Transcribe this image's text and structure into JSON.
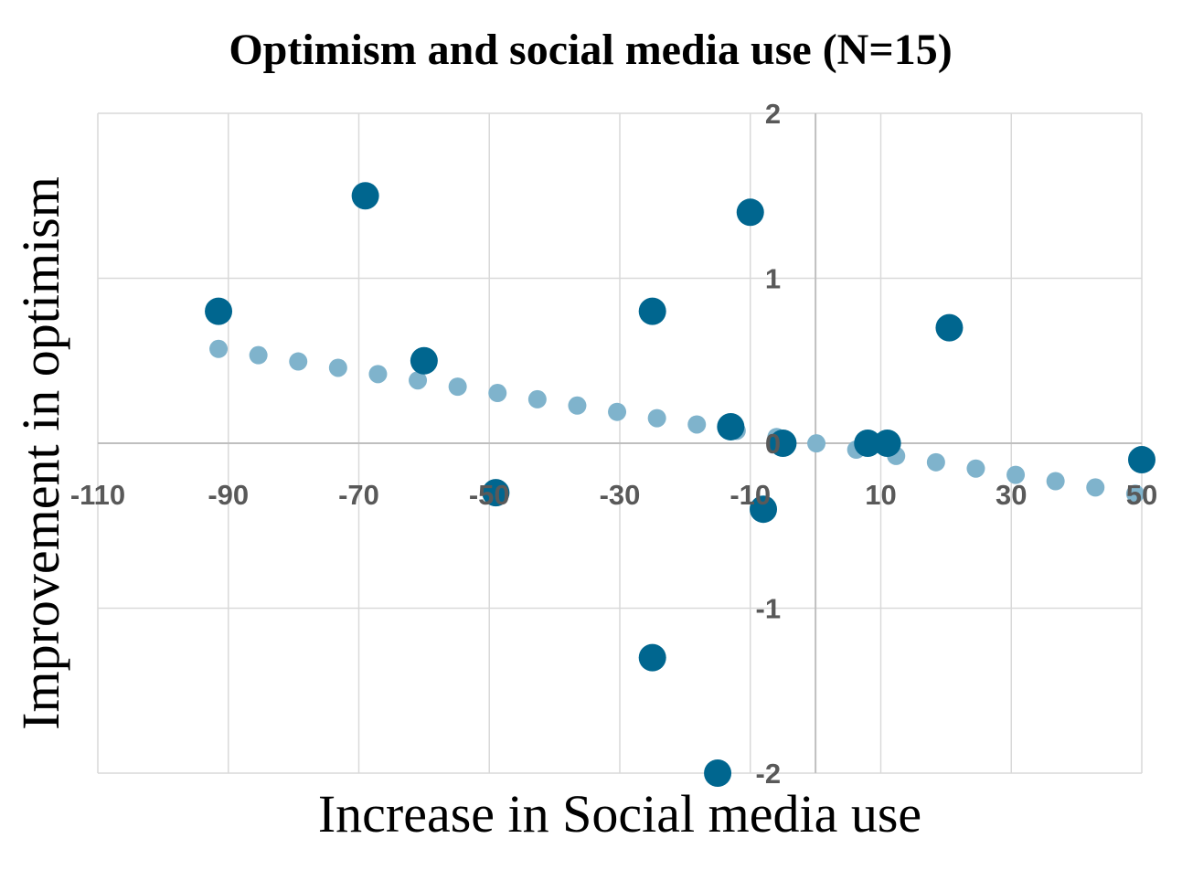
{
  "chart_data": {
    "type": "scatter",
    "title": "Optimism and social media use (N=15)",
    "xlabel": "Increase in Social media use",
    "ylabel": "Improvement in optimism",
    "xlim": [
      -110,
      50
    ],
    "ylim": [
      -2,
      2
    ],
    "x_ticks": [
      -110,
      -90,
      -70,
      -50,
      -30,
      -10,
      10,
      30,
      50
    ],
    "y_ticks": [
      -2,
      -1,
      0,
      1,
      2
    ],
    "x_tick_labels": [
      "-110",
      "-90",
      "-70",
      "-50",
      "-30",
      "-10",
      "10",
      "30",
      "50"
    ],
    "y_tick_labels": [
      "-2",
      "-1",
      "0",
      "1",
      "2"
    ],
    "grid": true,
    "legend": "none",
    "colors": {
      "series": "#00668f",
      "trendline": "#7fb3cc"
    },
    "series": [
      {
        "points": [
          {
            "x": -91.5,
            "y": 0.8
          },
          {
            "x": -69,
            "y": 1.5
          },
          {
            "x": -60,
            "y": 0.5
          },
          {
            "x": -49,
            "y": -0.3
          },
          {
            "x": -25,
            "y": 0.8
          },
          {
            "x": -25,
            "y": -1.3
          },
          {
            "x": -15,
            "y": -2.0
          },
          {
            "x": -13,
            "y": 0.1
          },
          {
            "x": -10,
            "y": 1.4
          },
          {
            "x": -8,
            "y": -0.4
          },
          {
            "x": -5,
            "y": 0.0
          },
          {
            "x": 8,
            "y": 0.0
          },
          {
            "x": 11,
            "y": 0.0
          },
          {
            "x": 20.5,
            "y": 0.7
          },
          {
            "x": 50,
            "y": -0.1
          }
        ]
      }
    ],
    "trendline": {
      "style": "dotted",
      "slope": -0.00625,
      "intercept": 0.0,
      "x_range": [
        -91.5,
        49
      ]
    }
  }
}
